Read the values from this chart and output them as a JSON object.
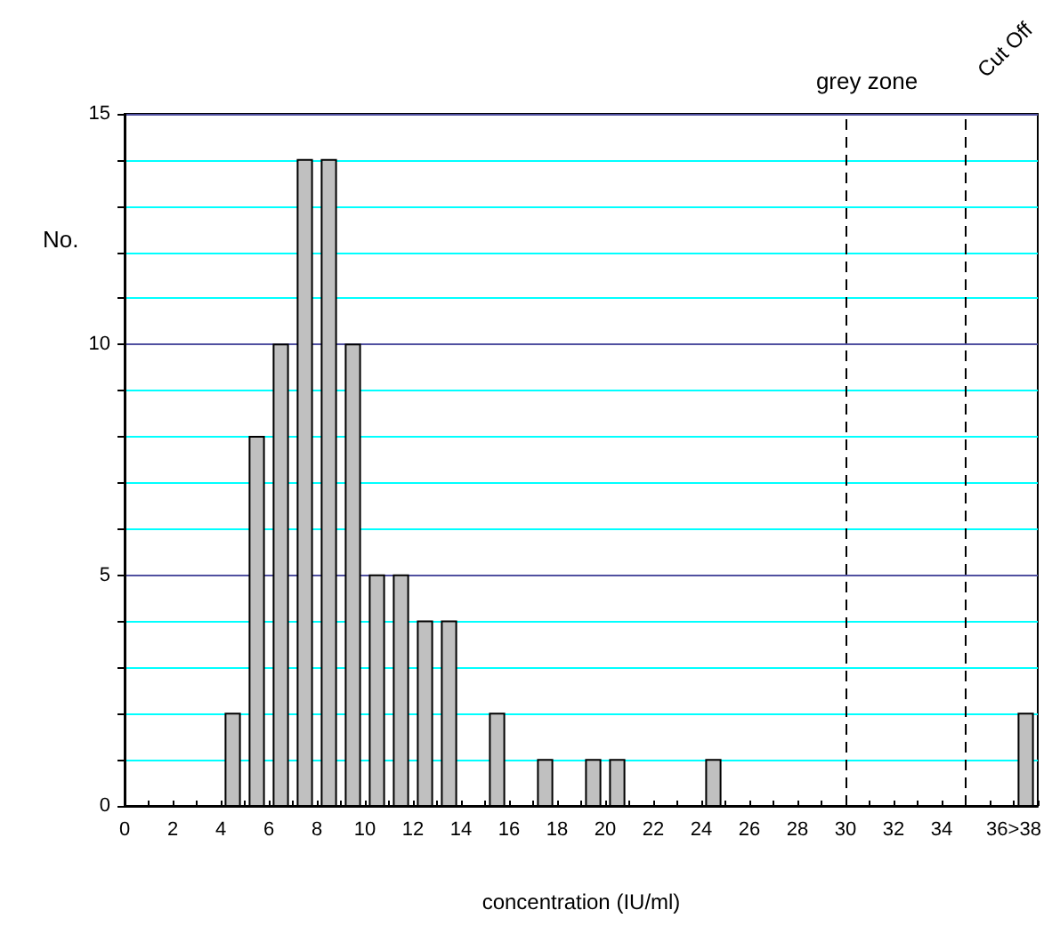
{
  "chart_data": {
    "type": "histogram",
    "xlabel": "concentration (IU/ml)",
    "ylabel": "No.",
    "bins": [
      0,
      1,
      2,
      3,
      4,
      5,
      6,
      7,
      8,
      9,
      10,
      11,
      12,
      13,
      14,
      15,
      16,
      17,
      18,
      19,
      20,
      21,
      22,
      23,
      24,
      25,
      26,
      27,
      28,
      29,
      30,
      31,
      32,
      33,
      34,
      35,
      36,
      37,
      38
    ],
    "values": [
      0,
      0,
      0,
      0,
      2,
      8,
      10,
      14,
      14,
      10,
      5,
      5,
      4,
      4,
      0,
      2,
      0,
      1,
      0,
      1,
      1,
      0,
      0,
      0,
      1,
      0,
      0,
      0,
      0,
      0,
      0,
      0,
      0,
      0,
      0,
      0,
      0,
      2
    ],
    "color": "#c0c0c0",
    "xlim": [
      0,
      38
    ],
    "xticks": [
      0,
      {
        "value": 1,
        "label": null
      },
      2,
      {
        "value": 3,
        "label": null
      },
      4,
      {
        "value": 5,
        "label": null
      },
      6,
      {
        "value": 7,
        "label": null
      },
      8,
      {
        "value": 9,
        "label": null
      },
      10,
      {
        "value": 11,
        "label": null
      },
      12,
      {
        "value": 13,
        "label": null
      },
      14,
      {
        "value": 15,
        "label": null
      },
      16,
      {
        "value": 17,
        "label": null
      },
      18,
      {
        "value": 19,
        "label": null
      },
      20,
      {
        "value": 21,
        "label": null
      },
      22,
      {
        "value": 23,
        "label": null
      },
      24,
      {
        "value": 25,
        "label": null
      },
      26,
      {
        "value": 27,
        "label": null
      },
      28,
      {
        "value": 29,
        "label": null
      },
      30,
      {
        "value": 31,
        "label": null
      },
      32,
      {
        "value": 33,
        "label": null
      },
      34,
      {
        "value": 35,
        "label": null
      },
      {
        "value": 36,
        "label": null
      },
      {
        "value": 37,
        "label": "36>38"
      },
      {
        "value": 38,
        "label": null
      }
    ],
    "ylim": [
      0,
      15
    ],
    "yticks": [
      0,
      {
        "value": 1,
        "label": null
      },
      {
        "value": 2,
        "label": null
      },
      {
        "value": 3,
        "label": null
      },
      {
        "value": 4,
        "label": null
      },
      5,
      {
        "value": 6,
        "label": null
      },
      {
        "value": 7,
        "label": null
      },
      {
        "value": 8,
        "label": null
      },
      {
        "value": 9,
        "label": null
      },
      10,
      {
        "value": 11,
        "label": null
      },
      {
        "value": 12,
        "label": null
      },
      {
        "value": 13,
        "label": null
      },
      {
        "value": 14,
        "label": null
      },
      15
    ],
    "grid": "y",
    "ref_lines": [
      {
        "axis": "x",
        "value": 30,
        "label": "grey zone",
        "color": "#000000",
        "line_style": "dashed"
      },
      {
        "axis": "x",
        "value": 35,
        "label": "Cut Off",
        "color": "#000000",
        "line_style": "dashed"
      }
    ]
  }
}
